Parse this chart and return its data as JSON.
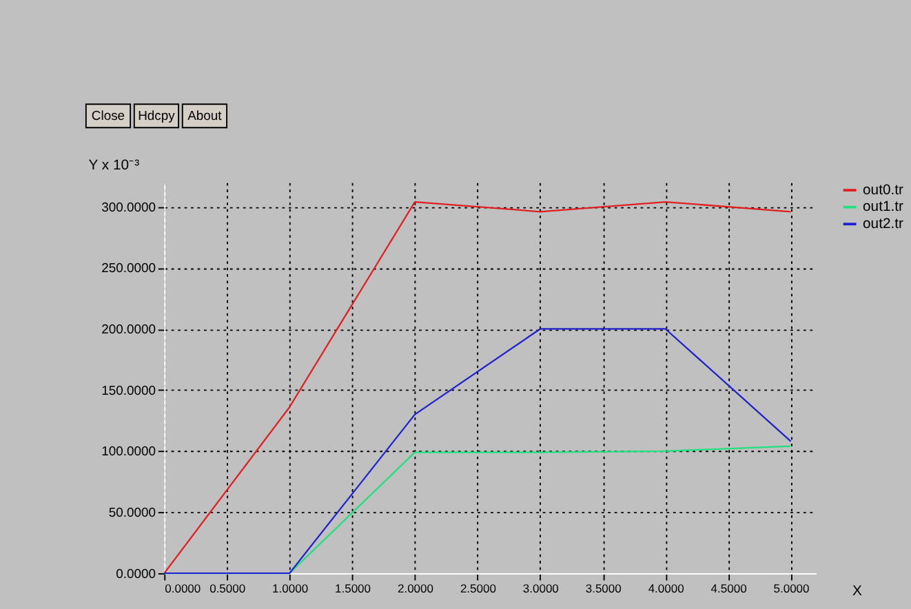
{
  "chart_data": {
    "type": "line",
    "xlabel": "X",
    "ylabel": "Y x 10⁻³",
    "annotations": [
      "Close",
      "Hdcpy",
      "About"
    ],
    "x": [
      0,
      1,
      2,
      3,
      4,
      5
    ],
    "series": [
      {
        "name": "out0.tr",
        "color": "#e02020",
        "values": [
          0,
          136,
          304,
          296,
          304,
          296
        ]
      },
      {
        "name": "out1.tr",
        "color": "#20e080",
        "values": [
          0,
          0,
          99,
          99,
          100,
          104
        ]
      },
      {
        "name": "out2.tr",
        "color": "#2020d0",
        "values": [
          0,
          0,
          130,
          200,
          200,
          108
        ]
      }
    ],
    "xlim": [
      0,
      5.2
    ],
    "ylim": [
      0,
      320
    ],
    "xticks": [
      {
        "value": 0,
        "label": "0.0000"
      },
      {
        "value": 0.5,
        "label": "0.5000"
      },
      {
        "value": 1,
        "label": "1.0000"
      },
      {
        "value": 1.5,
        "label": "1.5000"
      },
      {
        "value": 2,
        "label": "2.0000"
      },
      {
        "value": 2.5,
        "label": "2.5000"
      },
      {
        "value": 3,
        "label": "3.0000"
      },
      {
        "value": 3.5,
        "label": "3.5000"
      },
      {
        "value": 4,
        "label": "4.0000"
      },
      {
        "value": 4.5,
        "label": "4.5000"
      },
      {
        "value": 5,
        "label": "5.0000"
      }
    ],
    "yticks": [
      {
        "value": 0,
        "label": "0.0000"
      },
      {
        "value": 50,
        "label": "50.0000"
      },
      {
        "value": 100,
        "label": "100.0000"
      },
      {
        "value": 150,
        "label": "150.0000"
      },
      {
        "value": 200,
        "label": "200.0000"
      },
      {
        "value": 250,
        "label": "250.0000"
      },
      {
        "value": 300,
        "label": "300.0000"
      }
    ],
    "grid": true,
    "legend": "top right",
    "marker": "none",
    "line_style": "solid"
  }
}
